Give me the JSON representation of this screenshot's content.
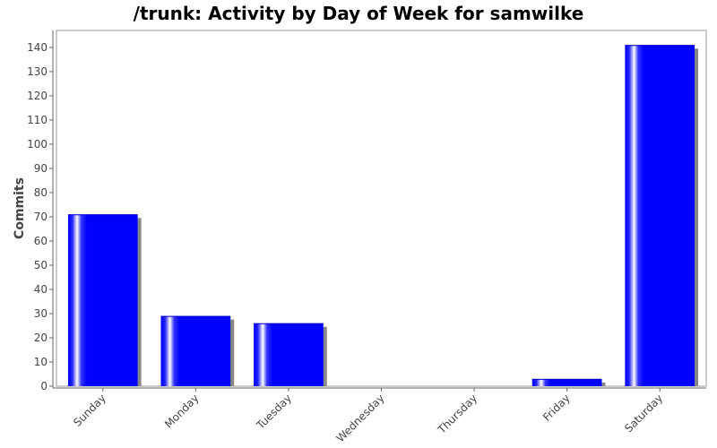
{
  "chart_data": {
    "type": "bar",
    "title": "/trunk: Activity by Day of Week for samwilke",
    "xlabel": "",
    "ylabel": "Commits",
    "categories": [
      "Sunday",
      "Monday",
      "Tuesday",
      "Wednesday",
      "Thursday",
      "Friday",
      "Saturday"
    ],
    "values": [
      71,
      29,
      26,
      0,
      0,
      3,
      141
    ],
    "ylim": [
      0,
      147
    ],
    "yticks": [
      0,
      10,
      20,
      30,
      40,
      50,
      60,
      70,
      80,
      90,
      100,
      110,
      120,
      130,
      140
    ],
    "grid": false,
    "legend": "none",
    "colors": {
      "bar": "#0000ff",
      "bar_highlight": "#ffffff",
      "shadow": "#888888",
      "axis": "#666666"
    }
  }
}
